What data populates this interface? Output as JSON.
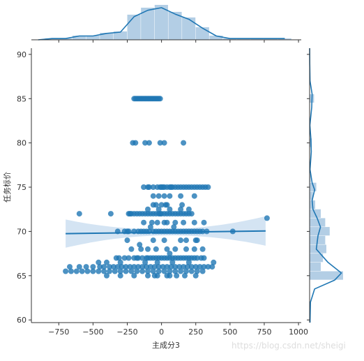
{
  "chart_data": {
    "type": "scatter",
    "title": "",
    "xlabel": "主成分3",
    "ylabel": "任务标价",
    "xlim": [
      -950,
      1020
    ],
    "ylim": [
      59.7,
      90.7
    ],
    "xticks": [
      -750,
      -500,
      -250,
      0,
      250,
      500,
      750,
      1000
    ],
    "yticks": [
      60,
      65,
      70,
      75,
      80,
      85,
      90
    ],
    "xtick_labels": [
      "−750",
      "−500",
      "−250",
      "0",
      "250",
      "500",
      "750",
      "1000"
    ],
    "ytick_labels": [
      "60",
      "65",
      "70",
      "75",
      "80",
      "85",
      "90"
    ],
    "colors": {
      "points": "#1f77b4",
      "fit_line": "#1f77b4",
      "confidence_band": "#c6dbef",
      "hist_fill": "#a6c6e0",
      "kde_line": "#1f77b4"
    },
    "grid": false,
    "regression": {
      "x_start": -700,
      "x_end": 760,
      "y_start": 69.75,
      "y_end": 70.05
    },
    "points": [
      [
        -180,
        85
      ],
      [
        -170,
        85
      ],
      [
        -160,
        85
      ],
      [
        -150,
        85
      ],
      [
        -140,
        85
      ],
      [
        -130,
        85
      ],
      [
        -120,
        85
      ],
      [
        -110,
        85
      ],
      [
        -100,
        85
      ],
      [
        -90,
        85
      ],
      [
        -80,
        85
      ],
      [
        -70,
        85
      ],
      [
        -60,
        85
      ],
      [
        -50,
        85
      ],
      [
        -40,
        85
      ],
      [
        -30,
        85
      ],
      [
        -20,
        85
      ],
      [
        -10,
        85
      ],
      [
        -200,
        85
      ],
      [
        -190,
        85
      ],
      [
        -210,
        80
      ],
      [
        -190,
        80
      ],
      [
        -120,
        80
      ],
      [
        -90,
        80
      ],
      [
        -10,
        80
      ],
      [
        20,
        80
      ],
      [
        160,
        80
      ],
      [
        -130,
        75
      ],
      [
        -100,
        75
      ],
      [
        -90,
        75
      ],
      [
        -60,
        75
      ],
      [
        -30,
        75
      ],
      [
        -10,
        75
      ],
      [
        0,
        75
      ],
      [
        20,
        75
      ],
      [
        40,
        75
      ],
      [
        60,
        75
      ],
      [
        80,
        75
      ],
      [
        100,
        75
      ],
      [
        120,
        75
      ],
      [
        140,
        75
      ],
      [
        160,
        75
      ],
      [
        180,
        75
      ],
      [
        200,
        75
      ],
      [
        220,
        75
      ],
      [
        240,
        75
      ],
      [
        260,
        75
      ],
      [
        280,
        75
      ],
      [
        300,
        75
      ],
      [
        320,
        75
      ],
      [
        340,
        75
      ],
      [
        10,
        75
      ],
      [
        70,
        75
      ],
      [
        -60,
        74
      ],
      [
        -20,
        74
      ],
      [
        20,
        74
      ],
      [
        60,
        74
      ],
      [
        140,
        74
      ],
      [
        240,
        74
      ],
      [
        -60,
        73
      ],
      [
        -40,
        73
      ],
      [
        0,
        73
      ],
      [
        30,
        73
      ],
      [
        40,
        73
      ],
      [
        150,
        73
      ],
      [
        -230,
        72
      ],
      [
        -220,
        72
      ],
      [
        -200,
        72
      ],
      [
        -180,
        72
      ],
      [
        -160,
        72
      ],
      [
        -140,
        72
      ],
      [
        -120,
        72
      ],
      [
        -100,
        72
      ],
      [
        -80,
        72
      ],
      [
        -60,
        72
      ],
      [
        -40,
        72
      ],
      [
        -20,
        72
      ],
      [
        0,
        72
      ],
      [
        20,
        72
      ],
      [
        40,
        72
      ],
      [
        60,
        72
      ],
      [
        80,
        72
      ],
      [
        100,
        72
      ],
      [
        120,
        72
      ],
      [
        140,
        72
      ],
      [
        160,
        72
      ],
      [
        180,
        72
      ],
      [
        200,
        72
      ],
      [
        220,
        72
      ],
      [
        -600,
        72
      ],
      [
        -370,
        72
      ],
      [
        -240,
        72
      ],
      [
        -10,
        72
      ],
      [
        140,
        72.5
      ],
      [
        200,
        72.5
      ],
      [
        60,
        72.5
      ],
      [
        -100,
        72.5
      ],
      [
        -20,
        72.5
      ],
      [
        -130,
        71
      ],
      [
        -70,
        71
      ],
      [
        -30,
        71
      ],
      [
        20,
        71
      ],
      [
        40,
        71
      ],
      [
        100,
        71
      ],
      [
        160,
        71
      ],
      [
        240,
        71
      ],
      [
        310,
        71
      ],
      [
        770,
        71.5
      ],
      [
        -270,
        70
      ],
      [
        -240,
        70
      ],
      [
        -200,
        70
      ],
      [
        -170,
        70
      ],
      [
        -150,
        70
      ],
      [
        -130,
        70
      ],
      [
        -110,
        70
      ],
      [
        -90,
        70
      ],
      [
        -60,
        70
      ],
      [
        -40,
        70
      ],
      [
        -20,
        70
      ],
      [
        0,
        70
      ],
      [
        20,
        70
      ],
      [
        40,
        70
      ],
      [
        60,
        70
      ],
      [
        80,
        70
      ],
      [
        100,
        70
      ],
      [
        120,
        70
      ],
      [
        140,
        70
      ],
      [
        160,
        70
      ],
      [
        180,
        70
      ],
      [
        200,
        70
      ],
      [
        220,
        70
      ],
      [
        240,
        70
      ],
      [
        260,
        70
      ],
      [
        280,
        70
      ],
      [
        300,
        70
      ],
      [
        330,
        70
      ],
      [
        -320,
        70
      ],
      [
        -250,
        70
      ],
      [
        520,
        70
      ],
      [
        90,
        70.5
      ],
      [
        -80,
        70.5
      ],
      [
        -250,
        69
      ],
      [
        -60,
        69
      ],
      [
        20,
        69
      ],
      [
        140,
        69
      ],
      [
        180,
        69
      ],
      [
        250,
        69
      ],
      [
        260,
        69
      ],
      [
        -160,
        68.5
      ],
      [
        -100,
        68
      ],
      [
        -40,
        68
      ],
      [
        40,
        68
      ],
      [
        100,
        68
      ],
      [
        180,
        68
      ],
      [
        240,
        68
      ],
      [
        -150,
        68
      ],
      [
        300,
        68
      ],
      [
        -330,
        67
      ],
      [
        -310,
        67
      ],
      [
        -270,
        67
      ],
      [
        -240,
        67
      ],
      [
        -200,
        67
      ],
      [
        -170,
        67
      ],
      [
        -140,
        67
      ],
      [
        -110,
        67
      ],
      [
        -80,
        67
      ],
      [
        -60,
        67
      ],
      [
        -40,
        67
      ],
      [
        -20,
        67
      ],
      [
        0,
        67
      ],
      [
        20,
        67
      ],
      [
        40,
        67
      ],
      [
        60,
        67
      ],
      [
        80,
        67
      ],
      [
        100,
        67
      ],
      [
        120,
        67
      ],
      [
        140,
        67
      ],
      [
        160,
        67
      ],
      [
        180,
        67
      ],
      [
        200,
        67
      ],
      [
        220,
        67
      ],
      [
        240,
        67
      ],
      [
        260,
        67
      ],
      [
        290,
        67
      ],
      [
        310,
        67
      ],
      [
        -180,
        67
      ],
      [
        -100,
        67
      ],
      [
        60,
        67.5
      ],
      [
        -220,
        68
      ],
      [
        -670,
        66
      ],
      [
        -600,
        66
      ],
      [
        -550,
        66
      ],
      [
        -500,
        66
      ],
      [
        -450,
        66
      ],
      [
        -420,
        66
      ],
      [
        -380,
        66
      ],
      [
        -350,
        66
      ],
      [
        -320,
        66
      ],
      [
        -290,
        66
      ],
      [
        -260,
        66
      ],
      [
        -230,
        66
      ],
      [
        -200,
        66
      ],
      [
        -170,
        66
      ],
      [
        -140,
        66
      ],
      [
        -110,
        66
      ],
      [
        -80,
        66
      ],
      [
        -50,
        66
      ],
      [
        -20,
        66
      ],
      [
        10,
        66
      ],
      [
        40,
        66
      ],
      [
        70,
        66
      ],
      [
        100,
        66
      ],
      [
        130,
        66
      ],
      [
        160,
        66
      ],
      [
        190,
        66
      ],
      [
        220,
        66
      ],
      [
        250,
        66
      ],
      [
        280,
        66
      ],
      [
        310,
        66
      ],
      [
        340,
        66
      ],
      [
        370,
        66
      ],
      [
        -120,
        66.5
      ],
      [
        -30,
        66.5
      ],
      [
        80,
        66.5
      ],
      [
        200,
        66.5
      ],
      [
        -300,
        66.5
      ],
      [
        -400,
        66.5
      ],
      [
        -460,
        66.5
      ],
      [
        380,
        66.5
      ],
      [
        -700,
        65.5
      ],
      [
        -660,
        65.5
      ],
      [
        -620,
        65.5
      ],
      [
        -580,
        65.5
      ],
      [
        -540,
        65.5
      ],
      [
        -500,
        65.5
      ],
      [
        -460,
        65.5
      ],
      [
        -420,
        65.5
      ],
      [
        -380,
        65.5
      ],
      [
        -340,
        65.5
      ],
      [
        -300,
        65.5
      ],
      [
        -260,
        65.5
      ],
      [
        -220,
        65.5
      ],
      [
        -180,
        65.5
      ],
      [
        -140,
        65.5
      ],
      [
        -100,
        65.5
      ],
      [
        -60,
        65.5
      ],
      [
        -20,
        65.5
      ],
      [
        20,
        65.5
      ],
      [
        60,
        65.5
      ],
      [
        100,
        65.5
      ],
      [
        140,
        65.5
      ],
      [
        180,
        65.5
      ],
      [
        220,
        65.5
      ],
      [
        260,
        65.5
      ],
      [
        300,
        65.5
      ],
      [
        -400,
        65
      ],
      [
        -300,
        65
      ],
      [
        -200,
        65
      ],
      [
        -100,
        65
      ],
      [
        -30,
        65
      ],
      [
        40,
        65
      ],
      [
        110,
        65
      ],
      [
        170,
        65
      ],
      [
        250,
        65
      ],
      [
        -50,
        65
      ],
      [
        60,
        65
      ]
    ],
    "x_marginal_hist": [
      {
        "x0": -950,
        "x1": -850,
        "count": 0
      },
      {
        "x0": -850,
        "x1": -750,
        "count": 1
      },
      {
        "x0": -750,
        "x1": -650,
        "count": 1
      },
      {
        "x0": -650,
        "x1": -550,
        "count": 3
      },
      {
        "x0": -550,
        "x1": -450,
        "count": 3
      },
      {
        "x0": -450,
        "x1": -350,
        "count": 5
      },
      {
        "x0": -350,
        "x1": -250,
        "count": 6
      },
      {
        "x0": -250,
        "x1": -150,
        "count": 18
      },
      {
        "x0": -150,
        "x1": -50,
        "count": 23
      },
      {
        "x0": -50,
        "x1": 50,
        "count": 25
      },
      {
        "x0": 50,
        "x1": 150,
        "count": 20
      },
      {
        "x0": 150,
        "x1": 250,
        "count": 16
      },
      {
        "x0": 250,
        "x1": 350,
        "count": 9
      },
      {
        "x0": 350,
        "x1": 450,
        "count": 3
      },
      {
        "x0": 450,
        "x1": 550,
        "count": 1
      },
      {
        "x0": 550,
        "x1": 650,
        "count": 1
      },
      {
        "x0": 650,
        "x1": 750,
        "count": 1
      },
      {
        "x0": 750,
        "x1": 850,
        "count": 1
      },
      {
        "x0": 850,
        "x1": 950,
        "count": 1
      }
    ],
    "y_marginal_hist": [
      {
        "y0": 64.5,
        "y1": 65.5,
        "count": 30
      },
      {
        "y0": 65.5,
        "y1": 66.5,
        "count": 10
      },
      {
        "y0": 66.5,
        "y1": 67.5,
        "count": 12
      },
      {
        "y0": 67.5,
        "y1": 68.5,
        "count": 15
      },
      {
        "y0": 68.5,
        "y1": 69.5,
        "count": 14
      },
      {
        "y0": 69.5,
        "y1": 70.5,
        "count": 18
      },
      {
        "y0": 70.5,
        "y1": 71.5,
        "count": 14
      },
      {
        "y0": 71.5,
        "y1": 72.5,
        "count": 10
      },
      {
        "y0": 72.5,
        "y1": 73.5,
        "count": 5
      },
      {
        "y0": 73.5,
        "y1": 74.5,
        "count": 3
      },
      {
        "y0": 74.5,
        "y1": 75.5,
        "count": 6
      },
      {
        "y0": 75.5,
        "y1": 76.5,
        "count": 1
      },
      {
        "y0": 79.5,
        "y1": 80.5,
        "count": 2
      },
      {
        "y0": 84.5,
        "y1": 85.5,
        "count": 4
      }
    ]
  },
  "watermark": "https://blog.csdn.net/sheigi"
}
